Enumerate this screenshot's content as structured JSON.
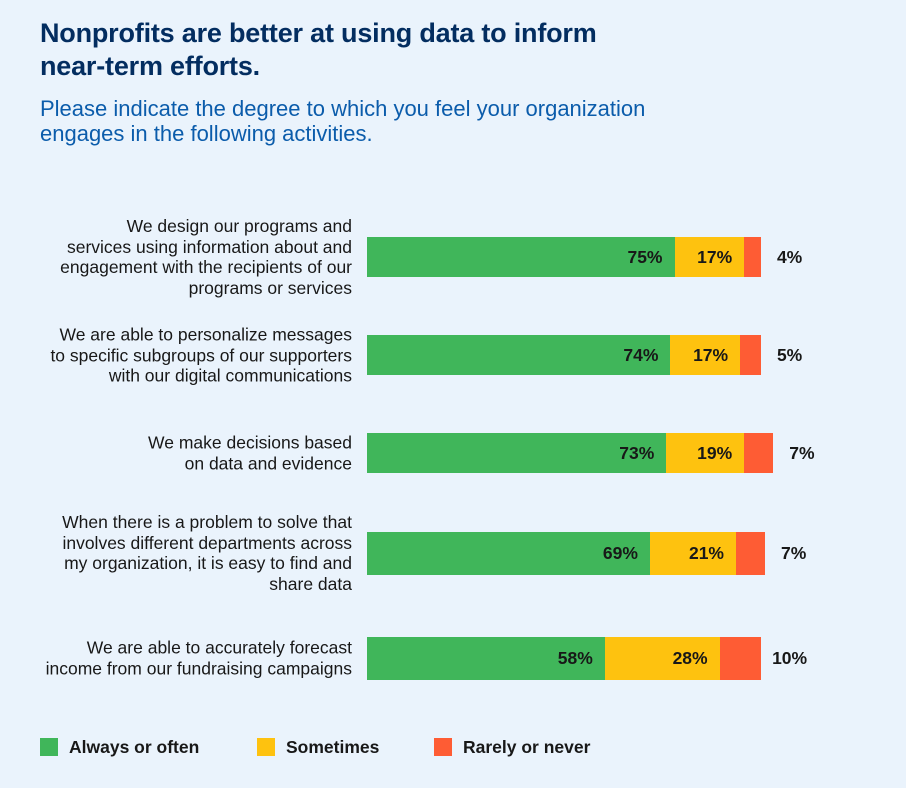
{
  "colors": {
    "background": "#eaf3fc",
    "title": "#032d60",
    "subtitle": "#0b5cab",
    "text": "#181818"
  },
  "chart_data": {
    "type": "bar",
    "orientation": "horizontal",
    "stacked": true,
    "title": "Nonprofits are better at using data to inform near-term efforts.",
    "subtitle": "Please indicate the degree to which you feel your organization engages in the following activities.",
    "categories": [
      "We design our programs and\nservices using information about and\nengagement with the recipients of our\nprograms or services",
      "We are able to personalize messages\nto specific subgroups of our supporters\nwith our digital communications",
      "We make decisions based\non data and evidence",
      "When there is a problem to solve that\ninvolves different departments across\nmy organization, it is easy to find and\nshare data",
      "We are able to accurately forecast\nincome from our fundraising campaigns"
    ],
    "series": [
      {
        "name": "Always or often",
        "color": "#40b65a",
        "values": [
          75,
          74,
          73,
          69,
          58
        ]
      },
      {
        "name": "Sometimes",
        "color": "#fec20f",
        "values": [
          17,
          17,
          19,
          21,
          28
        ]
      },
      {
        "name": "Rarely or never",
        "color": "#fe5c34",
        "values": [
          4,
          5,
          7,
          7,
          10
        ]
      }
    ],
    "unit": "%",
    "grid": false,
    "legend_position": "bottom"
  }
}
